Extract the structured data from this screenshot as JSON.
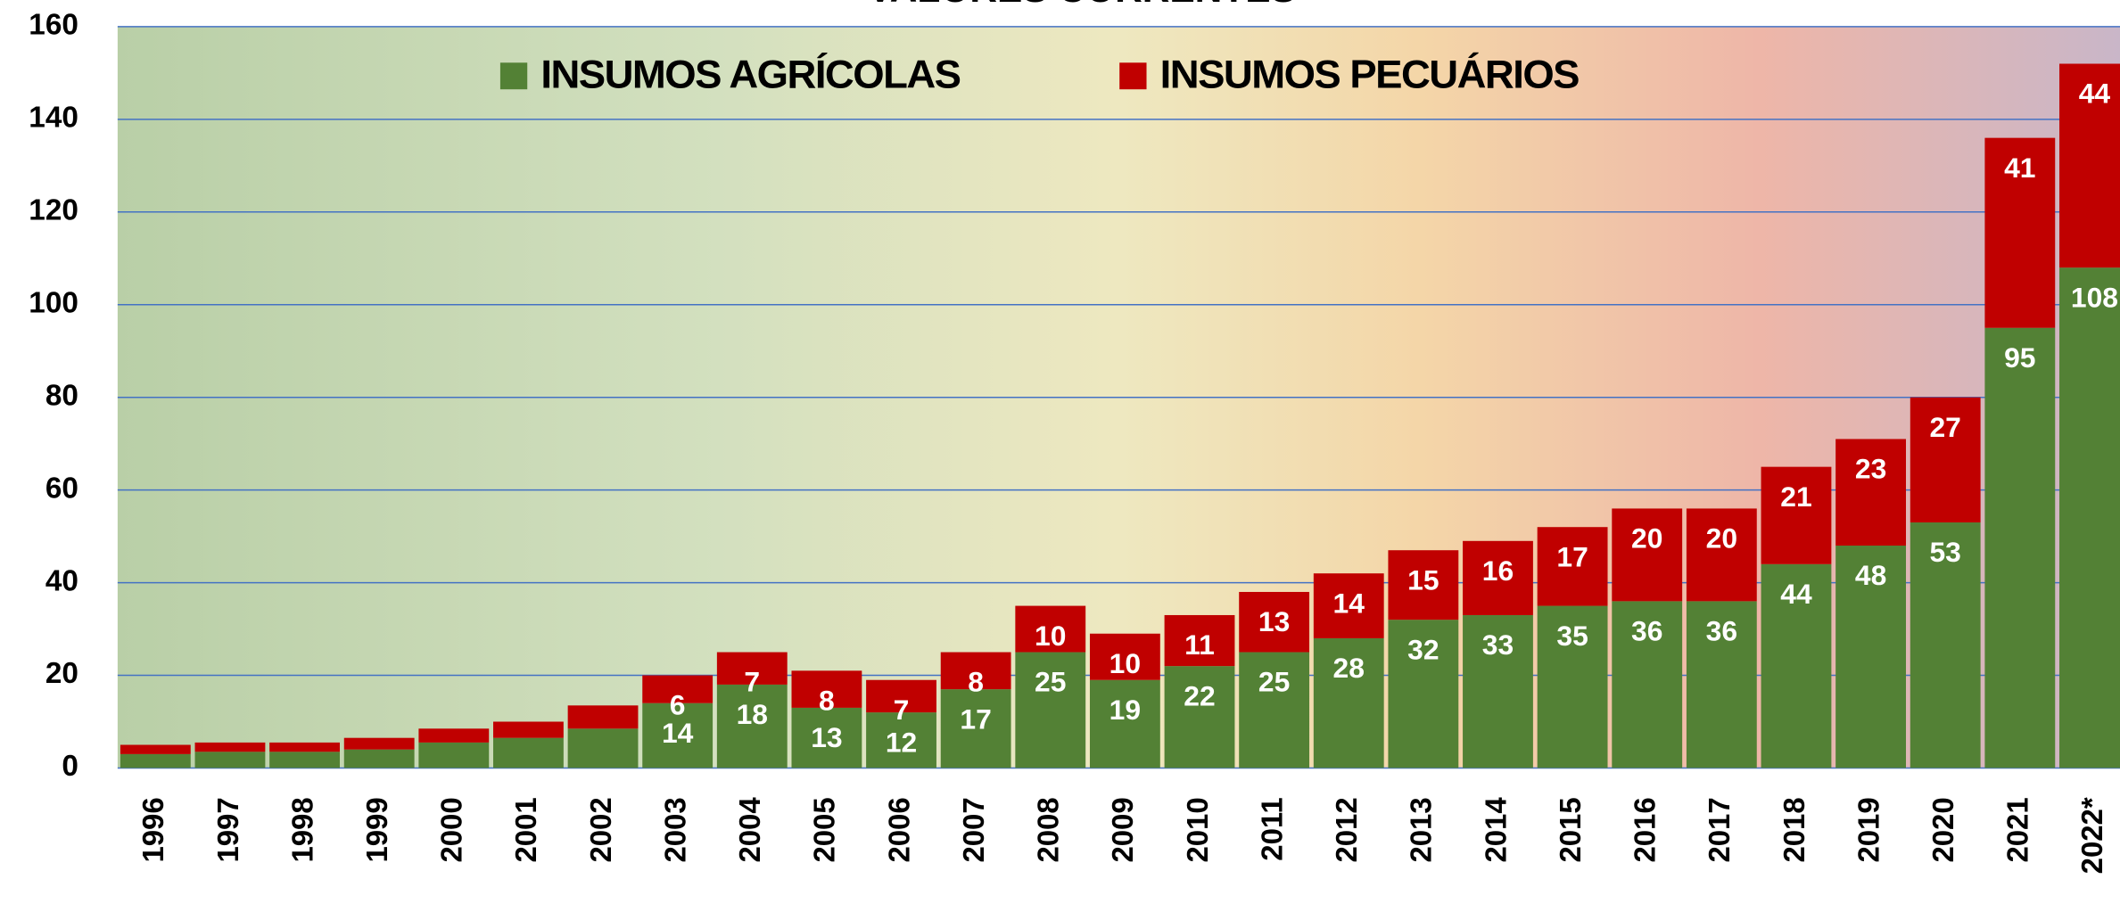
{
  "chart_data": {
    "type": "stacked_bar",
    "title": "VALORES CORRENTES",
    "categories": [
      "1996",
      "1997",
      "1998",
      "1999",
      "2000",
      "2001",
      "2002",
      "2003",
      "2004",
      "2005",
      "2006",
      "2007",
      "2008",
      "2009",
      "2010",
      "2011",
      "2012",
      "2013",
      "2014",
      "2015",
      "2016",
      "2017",
      "2018",
      "2019",
      "2020",
      "2021",
      "2022*"
    ],
    "series": [
      {
        "name": "INSUMOS AGRÍCOLAS",
        "color": "#538135",
        "values": [
          3,
          3.5,
          3.5,
          4,
          5.5,
          6.5,
          8.5,
          14,
          18,
          13,
          12,
          17,
          25,
          19,
          22,
          25,
          28,
          32,
          33,
          35,
          36,
          36,
          44,
          48,
          53,
          95,
          108
        ],
        "value_labels": [
          null,
          null,
          null,
          null,
          null,
          null,
          null,
          "14",
          "18",
          "13",
          "12",
          "17",
          "25",
          "19",
          "22",
          "25",
          "28",
          "32",
          "33",
          "35",
          "36",
          "36",
          "44",
          "48",
          "53",
          "95",
          "108"
        ]
      },
      {
        "name": "INSUMOS PECUÁRIOS",
        "color": "#c00000",
        "values": [
          2,
          2,
          2,
          2.5,
          3,
          3.5,
          5,
          6,
          7,
          8,
          7,
          8,
          10,
          10,
          11,
          13,
          14,
          15,
          16,
          17,
          20,
          20,
          21,
          23,
          27,
          41,
          44
        ],
        "value_labels": [
          null,
          null,
          null,
          null,
          null,
          null,
          null,
          "6",
          "7",
          "8",
          "7",
          "8",
          "10",
          "10",
          "11",
          "13",
          "14",
          "15",
          "16",
          "17",
          "20",
          "20",
          "21",
          "23",
          "27",
          "41",
          "44"
        ]
      }
    ],
    "ylim": [
      0,
      160
    ],
    "yticks": [
      0,
      20,
      40,
      60,
      80,
      100,
      120,
      140,
      160
    ],
    "grid": true
  }
}
